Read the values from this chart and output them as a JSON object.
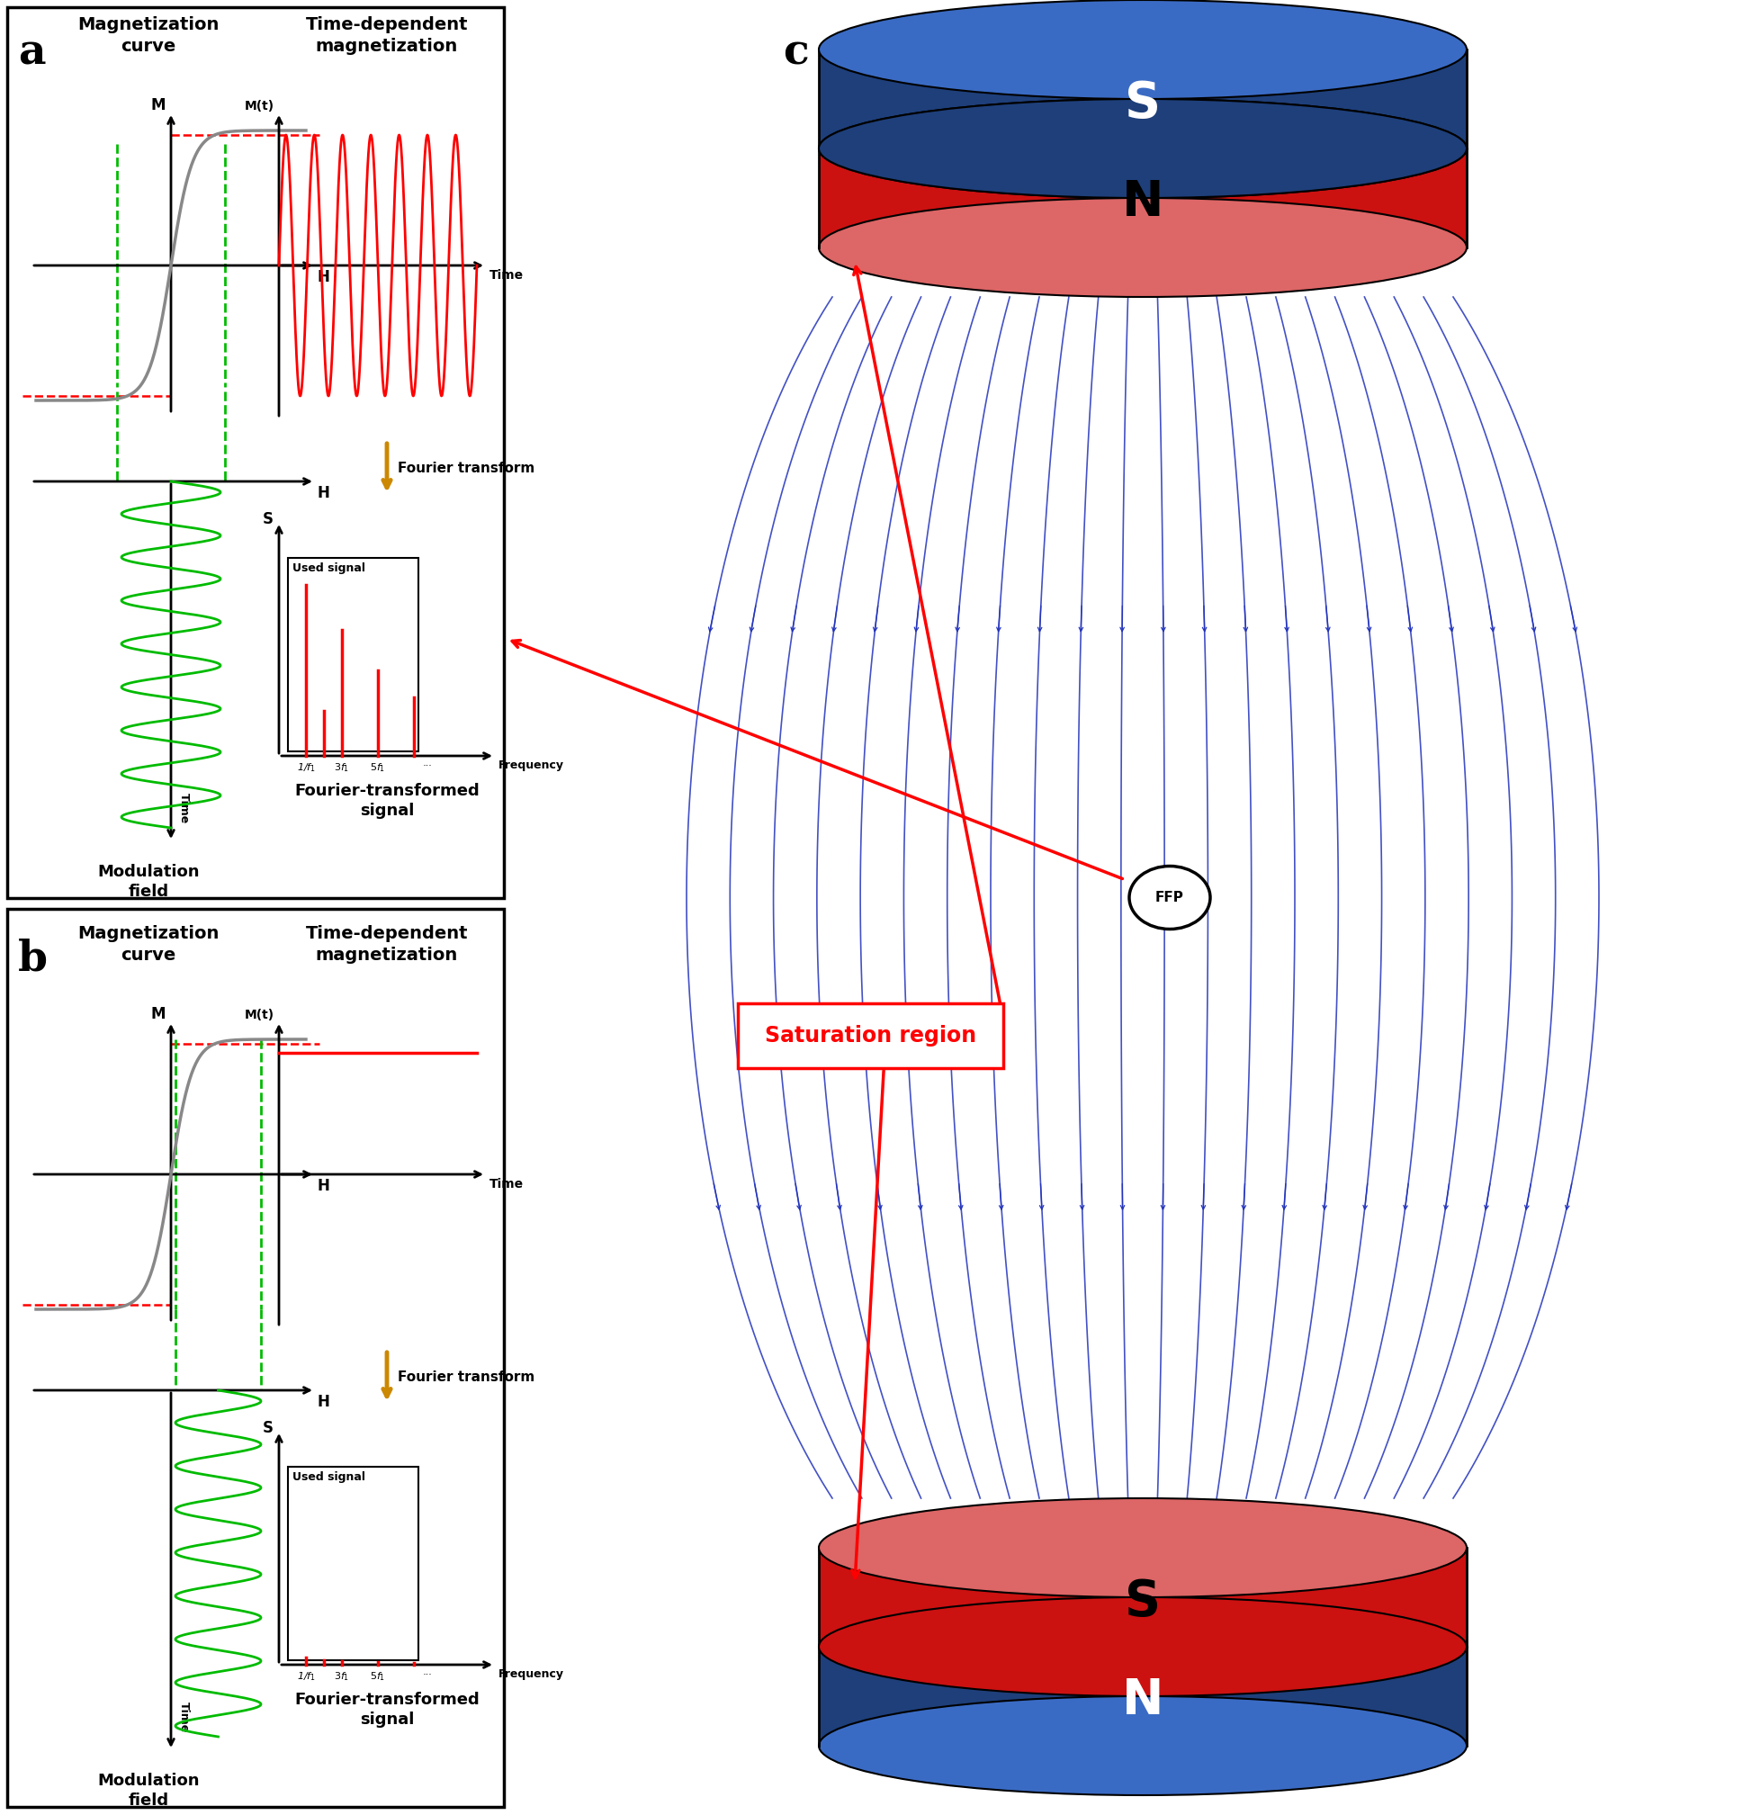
{
  "bg_color": "#ffffff",
  "border_color": "#000000",
  "magnet_blue_body": "#1e3f7a",
  "magnet_blue_top": "#3a6bc4",
  "magnet_blue_dark": "#0d2255",
  "magnet_red_body": "#cc1111",
  "magnet_red_light": "#dd6666",
  "magnet_red_dark": "#990000",
  "field_line_color": "#2233bb",
  "green_color": "#00bb00",
  "gray_curve": "#888888",
  "panel_a_label": "a",
  "panel_b_label": "b",
  "panel_c_label": "c",
  "mag_curve_title": "Magnetization\ncurve",
  "time_dep_title": "Time-dependent\nmagnetization",
  "modulation_title": "Modulation\nfield",
  "fourier_title": "Fourier transform",
  "fourier_signal_title": "Fourier-transformed\nsignal",
  "used_signal": "Used signal",
  "saturation_region": "Saturation region",
  "FFP": "FFP",
  "S_label": "S",
  "N_label": "N"
}
